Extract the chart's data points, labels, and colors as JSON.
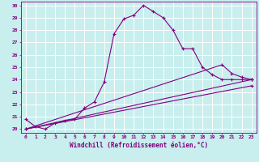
{
  "xlabel": "Windchill (Refroidissement éolien,°C)",
  "background_color": "#c8eeee",
  "grid_color": "#ffffff",
  "line_color": "#800080",
  "xlim": [
    -0.5,
    23.5
  ],
  "ylim": [
    19.7,
    30.3
  ],
  "yticks": [
    20,
    21,
    22,
    23,
    24,
    25,
    26,
    27,
    28,
    29,
    30
  ],
  "xticks": [
    0,
    1,
    2,
    3,
    4,
    5,
    6,
    7,
    8,
    9,
    10,
    11,
    12,
    13,
    14,
    15,
    16,
    17,
    18,
    19,
    20,
    21,
    22,
    23
  ],
  "series": [
    {
      "x": [
        0,
        1,
        2,
        3,
        4,
        5,
        6,
        7,
        8,
        9,
        10,
        11,
        12,
        13,
        14,
        15,
        16,
        17,
        18,
        19,
        20,
        21,
        22,
        23
      ],
      "y": [
        20.8,
        20.2,
        20.0,
        20.5,
        20.7,
        20.8,
        21.7,
        22.2,
        23.8,
        27.7,
        28.9,
        29.2,
        30.0,
        29.5,
        29.0,
        28.0,
        26.5,
        26.5,
        25.0,
        24.4,
        24.0,
        24.0,
        24.0,
        24.0
      ]
    },
    {
      "x": [
        0,
        20,
        21,
        22,
        23
      ],
      "y": [
        20.0,
        25.2,
        24.5,
        24.2,
        24.0
      ]
    },
    {
      "x": [
        0,
        23
      ],
      "y": [
        20.0,
        24.0
      ]
    },
    {
      "x": [
        0,
        23
      ],
      "y": [
        20.0,
        23.5
      ]
    }
  ]
}
